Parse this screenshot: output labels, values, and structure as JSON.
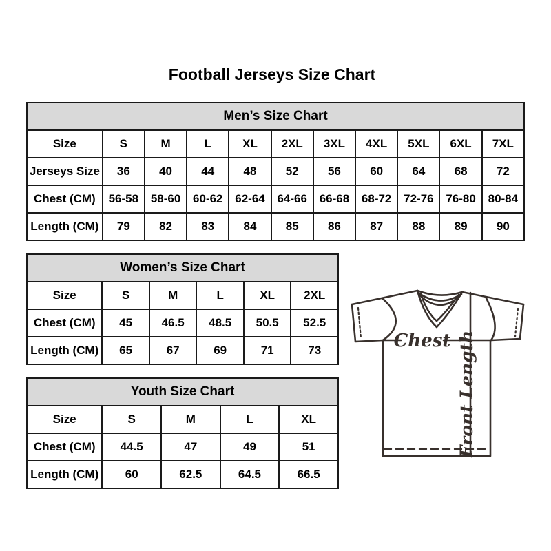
{
  "page": {
    "title": "Football Jerseys Size Chart"
  },
  "tables": [
    {
      "title": "Men’s Size Chart",
      "rows": [
        {
          "label": "Size",
          "values": [
            "S",
            "M",
            "L",
            "XL",
            "2XL",
            "3XL",
            "4XL",
            "5XL",
            "6XL",
            "7XL"
          ]
        },
        {
          "label": "Jerseys Size",
          "values": [
            "36",
            "40",
            "44",
            "48",
            "52",
            "56",
            "60",
            "64",
            "68",
            "72"
          ]
        },
        {
          "label": "Chest (CM)",
          "values": [
            "56-58",
            "58-60",
            "60-62",
            "62-64",
            "64-66",
            "66-68",
            "68-72",
            "72-76",
            "76-80",
            "80-84"
          ]
        },
        {
          "label": "Length (CM)",
          "values": [
            "79",
            "82",
            "83",
            "84",
            "85",
            "86",
            "87",
            "88",
            "89",
            "90"
          ]
        }
      ]
    },
    {
      "title": "Women’s Size Chart",
      "rows": [
        {
          "label": "Size",
          "values": [
            "S",
            "M",
            "L",
            "XL",
            "2XL"
          ]
        },
        {
          "label": "Chest (CM)",
          "values": [
            "45",
            "46.5",
            "48.5",
            "50.5",
            "52.5"
          ]
        },
        {
          "label": "Length (CM)",
          "values": [
            "65",
            "67",
            "69",
            "71",
            "73"
          ]
        }
      ]
    },
    {
      "title": "Youth Size Chart",
      "rows": [
        {
          "label": "Size",
          "values": [
            "S",
            "M",
            "L",
            "XL"
          ]
        },
        {
          "label": "Chest (CM)",
          "values": [
            "44.5",
            "47",
            "49",
            "51"
          ]
        },
        {
          "label": "Length (CM)",
          "values": [
            "60",
            "62.5",
            "64.5",
            "66.5"
          ]
        }
      ]
    }
  ],
  "diagram": {
    "chest_label": "Chest",
    "front_length_label": "Front Length"
  },
  "colors": {
    "header_bg": "#d9d9d9",
    "table_border": "#1a1a1a",
    "text": "#000000",
    "diagram_line": "#38302c"
  }
}
